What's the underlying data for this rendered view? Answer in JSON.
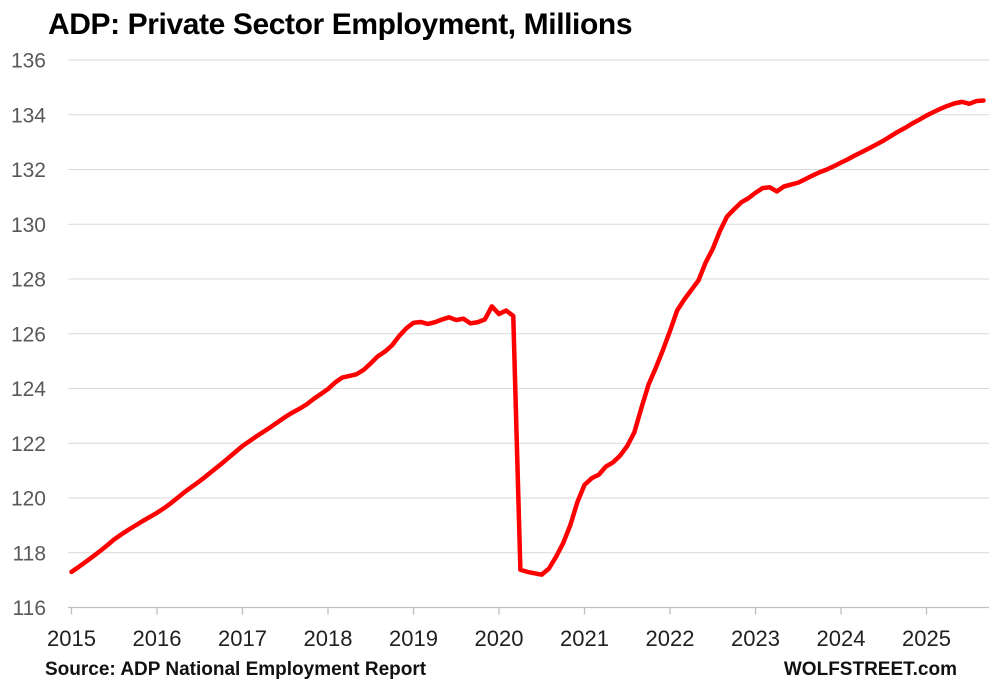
{
  "header": {
    "title": "ADP: Private Sector Employment, Millions"
  },
  "footer": {
    "source": "Source: ADP National Employment Report",
    "brand": "WOLFSTREET.com"
  },
  "chart_data": {
    "type": "line",
    "title": "ADP: Private Sector Employment, Millions",
    "xlabel": "",
    "ylabel": "",
    "ylim": [
      116,
      136
    ],
    "y_ticks": [
      136,
      134,
      132,
      130,
      128,
      126,
      124,
      122,
      120,
      118,
      116
    ],
    "x_tick_labels": [
      "2015",
      "2016",
      "2017",
      "2018",
      "2019",
      "2020",
      "2021",
      "2022",
      "2023",
      "2024",
      "2025"
    ],
    "grid": "horizontal",
    "legend": "none",
    "colors": {
      "line": "#fe0000",
      "gridline": "#d9d9d9",
      "axis": "#bfbfbf",
      "y_label": "#595959",
      "x_label": "#1f1f1f"
    },
    "series": [
      {
        "name": "ADP private sector employment, millions",
        "frequency": "monthly",
        "start": "2015-01",
        "end": "2025-09",
        "values": [
          117.3,
          117.48,
          117.67,
          117.86,
          118.06,
          118.27,
          118.49,
          118.67,
          118.84,
          119.0,
          119.16,
          119.31,
          119.46,
          119.63,
          119.82,
          120.03,
          120.24,
          120.43,
          120.62,
          120.82,
          121.03,
          121.24,
          121.46,
          121.68,
          121.9,
          122.08,
          122.26,
          122.43,
          122.6,
          122.78,
          122.96,
          123.12,
          123.26,
          123.42,
          123.62,
          123.8,
          123.98,
          124.22,
          124.4,
          124.46,
          124.52,
          124.68,
          124.92,
          125.18,
          125.35,
          125.58,
          125.92,
          126.2,
          126.4,
          126.43,
          126.36,
          126.42,
          126.52,
          126.6,
          126.5,
          126.55,
          126.38,
          126.42,
          126.52,
          127.0,
          126.72,
          126.85,
          126.65,
          117.38,
          117.3,
          117.25,
          117.2,
          117.42,
          117.85,
          118.35,
          119.0,
          119.85,
          120.48,
          120.72,
          120.85,
          121.15,
          121.3,
          121.55,
          121.9,
          122.4,
          123.3,
          124.15,
          124.75,
          125.4,
          126.1,
          126.85,
          127.25,
          127.6,
          127.95,
          128.6,
          129.1,
          129.75,
          130.28,
          130.55,
          130.8,
          130.95,
          131.15,
          131.32,
          131.35,
          131.2,
          131.38,
          131.45,
          131.52,
          131.65,
          131.78,
          131.9,
          132.0,
          132.12,
          132.25,
          132.38,
          132.52,
          132.65,
          132.78,
          132.92,
          133.06,
          133.22,
          133.38,
          133.52,
          133.68,
          133.82,
          133.97,
          134.1,
          134.22,
          134.33,
          134.42,
          134.47,
          134.4,
          134.5,
          134.52
        ]
      }
    ]
  }
}
